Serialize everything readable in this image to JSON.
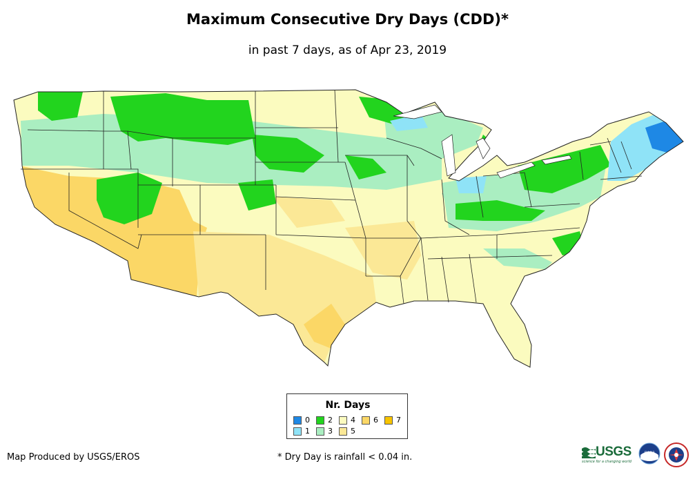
{
  "title": "Maximum Consecutive Dry Days (CDD)*",
  "subtitle": "in past 7 days, as of Apr 23, 2019",
  "legend": {
    "title": "Nr. Days",
    "items": [
      {
        "label": "0",
        "color": "#1e88e5"
      },
      {
        "label": "1",
        "color": "#8fe3f7"
      },
      {
        "label": "2",
        "color": "#22d41e"
      },
      {
        "label": "3",
        "color": "#aaeec1"
      },
      {
        "label": "4",
        "color": "#fbfbbf"
      },
      {
        "label": "5",
        "color": "#fbe896"
      },
      {
        "label": "6",
        "color": "#fbd766"
      },
      {
        "label": "7",
        "color": "#f8c400"
      }
    ]
  },
  "footer": {
    "credit": "Map Produced by USGS/EROS",
    "note": "* Dry Day is rainfall < 0.04 in."
  },
  "logos": {
    "usgs_text": "USGS",
    "usgs_tagline": "science for a changing world",
    "noaa_text": "noaa"
  }
}
